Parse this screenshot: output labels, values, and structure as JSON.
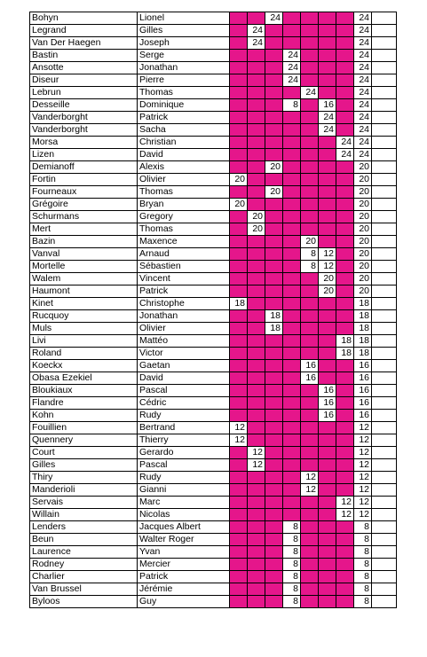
{
  "table": {
    "rows": [
      {
        "last": "Bohyn",
        "first": "Lionel",
        "cells": [
          null,
          null,
          24,
          null,
          null,
          null,
          null
        ],
        "total": 24
      },
      {
        "last": "Legrand",
        "first": "Gilles",
        "cells": [
          null,
          24,
          null,
          null,
          null,
          null,
          null
        ],
        "total": 24
      },
      {
        "last": "Van Der Haegen",
        "first": "Joseph",
        "cells": [
          null,
          24,
          null,
          null,
          null,
          null,
          null
        ],
        "total": 24
      },
      {
        "last": "Bastin",
        "first": "Serge",
        "cells": [
          null,
          null,
          null,
          24,
          null,
          null,
          null
        ],
        "total": 24
      },
      {
        "last": "Ansotte",
        "first": "Jonathan",
        "cells": [
          null,
          null,
          null,
          24,
          null,
          null,
          null
        ],
        "total": 24
      },
      {
        "last": "Diseur",
        "first": "Pierre",
        "cells": [
          null,
          null,
          null,
          24,
          null,
          null,
          null
        ],
        "total": 24
      },
      {
        "last": "Lebrun",
        "first": "Thomas",
        "cells": [
          null,
          null,
          null,
          null,
          24,
          null,
          null
        ],
        "total": 24
      },
      {
        "last": "Desseille",
        "first": "Dominique",
        "cells": [
          null,
          null,
          null,
          8,
          null,
          16,
          null
        ],
        "total": 24
      },
      {
        "last": "Vanderborght",
        "first": "Patrick",
        "cells": [
          null,
          null,
          null,
          null,
          null,
          24,
          null
        ],
        "total": 24
      },
      {
        "last": "Vanderborght",
        "first": "Sacha",
        "cells": [
          null,
          null,
          null,
          null,
          null,
          24,
          null
        ],
        "total": 24
      },
      {
        "last": "Morsa",
        "first": "Christian",
        "cells": [
          null,
          null,
          null,
          null,
          null,
          null,
          24
        ],
        "total": 24
      },
      {
        "last": "Lizen",
        "first": "David",
        "cells": [
          null,
          null,
          null,
          null,
          null,
          null,
          24
        ],
        "total": 24
      },
      {
        "last": "Demianoff",
        "first": "Alexis",
        "cells": [
          null,
          null,
          20,
          null,
          null,
          null,
          null
        ],
        "total": 20
      },
      {
        "last": "Fortin",
        "first": "Olivier",
        "cells": [
          20,
          null,
          null,
          null,
          null,
          null,
          null
        ],
        "total": 20
      },
      {
        "last": "Fourneaux",
        "first": "Thomas",
        "cells": [
          null,
          null,
          20,
          null,
          null,
          null,
          null
        ],
        "total": 20
      },
      {
        "last": "Grégoire",
        "first": "Bryan",
        "cells": [
          20,
          null,
          null,
          null,
          null,
          null,
          null
        ],
        "total": 20
      },
      {
        "last": "Schurmans",
        "first": "Gregory",
        "cells": [
          null,
          20,
          null,
          null,
          null,
          null,
          null
        ],
        "total": 20
      },
      {
        "last": "Mert",
        "first": "Thomas",
        "cells": [
          null,
          20,
          null,
          null,
          null,
          null,
          null
        ],
        "total": 20
      },
      {
        "last": "Bazin",
        "first": "Maxence",
        "cells": [
          null,
          null,
          null,
          null,
          20,
          null,
          null
        ],
        "total": 20
      },
      {
        "last": "Vanval",
        "first": "Arnaud",
        "cells": [
          null,
          null,
          null,
          null,
          8,
          12,
          null
        ],
        "total": 20
      },
      {
        "last": "Mortelle",
        "first": "Sébastien",
        "cells": [
          null,
          null,
          null,
          null,
          8,
          12,
          null
        ],
        "total": 20
      },
      {
        "last": "Walem",
        "first": "Vincent",
        "cells": [
          null,
          null,
          null,
          null,
          null,
          20,
          null
        ],
        "total": 20
      },
      {
        "last": "Haumont",
        "first": "Patrick",
        "cells": [
          null,
          null,
          null,
          null,
          null,
          20,
          null
        ],
        "total": 20
      },
      {
        "last": "Kinet",
        "first": "Christophe",
        "cells": [
          18,
          null,
          null,
          null,
          null,
          null,
          null
        ],
        "total": 18
      },
      {
        "last": "Rucquoy",
        "first": "Jonathan",
        "cells": [
          null,
          null,
          18,
          null,
          null,
          null,
          null
        ],
        "total": 18
      },
      {
        "last": "Muls",
        "first": "Olivier",
        "cells": [
          null,
          null,
          18,
          null,
          null,
          null,
          null
        ],
        "total": 18
      },
      {
        "last": "Livi",
        "first": "Mattéo",
        "cells": [
          null,
          null,
          null,
          null,
          null,
          null,
          18
        ],
        "total": 18
      },
      {
        "last": "Roland",
        "first": "Victor",
        "cells": [
          null,
          null,
          null,
          null,
          null,
          null,
          18
        ],
        "total": 18
      },
      {
        "last": "Koeckx",
        "first": "Gaetan",
        "cells": [
          null,
          null,
          null,
          null,
          16,
          null,
          null
        ],
        "total": 16
      },
      {
        "last": "Obasa Ezekiel",
        "first": "David",
        "cells": [
          null,
          null,
          null,
          null,
          16,
          null,
          null
        ],
        "total": 16
      },
      {
        "last": "Bloukiaux",
        "first": "Pascal",
        "cells": [
          null,
          null,
          null,
          null,
          null,
          16,
          null
        ],
        "total": 16
      },
      {
        "last": "Flandre",
        "first": "Cédric",
        "cells": [
          null,
          null,
          null,
          null,
          null,
          16,
          null
        ],
        "total": 16
      },
      {
        "last": "Kohn",
        "first": "Rudy",
        "cells": [
          null,
          null,
          null,
          null,
          null,
          16,
          null
        ],
        "total": 16
      },
      {
        "last": "Fouillien",
        "first": "Bertrand",
        "cells": [
          12,
          null,
          null,
          null,
          null,
          null,
          null
        ],
        "total": 12
      },
      {
        "last": "Quennery",
        "first": "Thierry",
        "cells": [
          12,
          null,
          null,
          null,
          null,
          null,
          null
        ],
        "total": 12
      },
      {
        "last": "Court",
        "first": "Gerardo",
        "cells": [
          null,
          12,
          null,
          null,
          null,
          null,
          null
        ],
        "total": 12
      },
      {
        "last": "Gilles",
        "first": "Pascal",
        "cells": [
          null,
          12,
          null,
          null,
          null,
          null,
          null
        ],
        "total": 12
      },
      {
        "last": "Thiry",
        "first": "Rudy",
        "cells": [
          null,
          null,
          null,
          null,
          12,
          null,
          null
        ],
        "total": 12
      },
      {
        "last": "Manderioli",
        "first": "Gianni",
        "cells": [
          null,
          null,
          null,
          null,
          12,
          null,
          null
        ],
        "total": 12
      },
      {
        "last": "Servais",
        "first": "Marc",
        "cells": [
          null,
          null,
          null,
          null,
          null,
          null,
          12
        ],
        "total": 12
      },
      {
        "last": "Willain",
        "first": "Nicolas",
        "cells": [
          null,
          null,
          null,
          null,
          null,
          null,
          12
        ],
        "total": 12
      },
      {
        "last": "Lenders",
        "first": "Jacques Albert",
        "cells": [
          null,
          null,
          null,
          8,
          null,
          null,
          null
        ],
        "total": 8
      },
      {
        "last": "Beun",
        "first": "Walter Roger",
        "cells": [
          null,
          null,
          null,
          8,
          null,
          null,
          null
        ],
        "total": 8
      },
      {
        "last": "Laurence",
        "first": "Yvan",
        "cells": [
          null,
          null,
          null,
          8,
          null,
          null,
          null
        ],
        "total": 8
      },
      {
        "last": "Rodney",
        "first": "Mercier",
        "cells": [
          null,
          null,
          null,
          8,
          null,
          null,
          null
        ],
        "total": 8
      },
      {
        "last": "Charlier",
        "first": "Patrick",
        "cells": [
          null,
          null,
          null,
          8,
          null,
          null,
          null
        ],
        "total": 8
      },
      {
        "last": "Van Brussel",
        "first": "Jérémie",
        "cells": [
          null,
          null,
          null,
          8,
          null,
          null,
          null
        ],
        "total": 8
      },
      {
        "last": "Byloos",
        "first": "Guy",
        "cells": [
          null,
          null,
          null,
          8,
          null,
          null,
          null
        ],
        "total": 8
      }
    ]
  }
}
